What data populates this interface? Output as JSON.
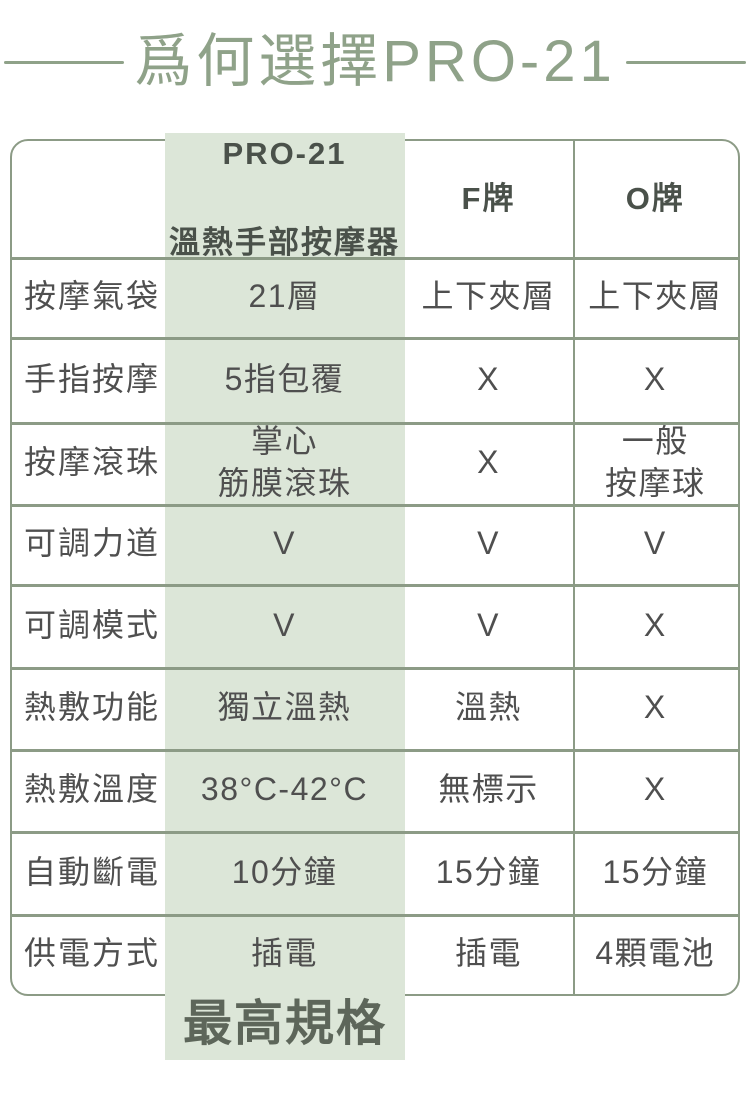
{
  "colors": {
    "accent_green": "#8FA289",
    "table_line_green": "#8C9B86",
    "highlight_column_bg": "#DCE6D8",
    "body_text": "#4F4F4F",
    "header_text": "#4A514A",
    "badge_text": "#5D665A"
  },
  "chart_data": {
    "type": "table",
    "title": "爲何選擇PRO-21",
    "header": {
      "col0": "",
      "col1_line1": "PRO-21",
      "col1_line2": "溫熱手部按摩器",
      "col2": "F牌",
      "col3": "O牌"
    },
    "highlight_column_index": 1,
    "rows": [
      {
        "label": "按摩氣袋",
        "values": [
          "21層",
          "上下夾層",
          "上下夾層"
        ]
      },
      {
        "label": "手指按摩",
        "values": [
          "5指包覆",
          "X",
          "X"
        ]
      },
      {
        "label": "按摩滾珠",
        "values": [
          "掌心\n筋膜滾珠",
          "X",
          "一般\n按摩球"
        ]
      },
      {
        "label": "可調力道",
        "values": [
          "V",
          "V",
          "V"
        ]
      },
      {
        "label": "可調模式",
        "values": [
          "V",
          "V",
          "X"
        ]
      },
      {
        "label": "熱敷功能",
        "values": [
          "獨立溫熱",
          "溫熱",
          "X"
        ]
      },
      {
        "label": "熱敷溫度",
        "values": [
          "38°C-42°C",
          "無標示",
          "X"
        ]
      },
      {
        "label": "自動斷電",
        "values": [
          "10分鐘",
          "15分鐘",
          "15分鐘"
        ]
      },
      {
        "label": "供電方式",
        "values": [
          "插電",
          "插電",
          "4顆電池"
        ]
      }
    ],
    "badge": "最高規格",
    "legend_position": "none",
    "grid": true
  }
}
